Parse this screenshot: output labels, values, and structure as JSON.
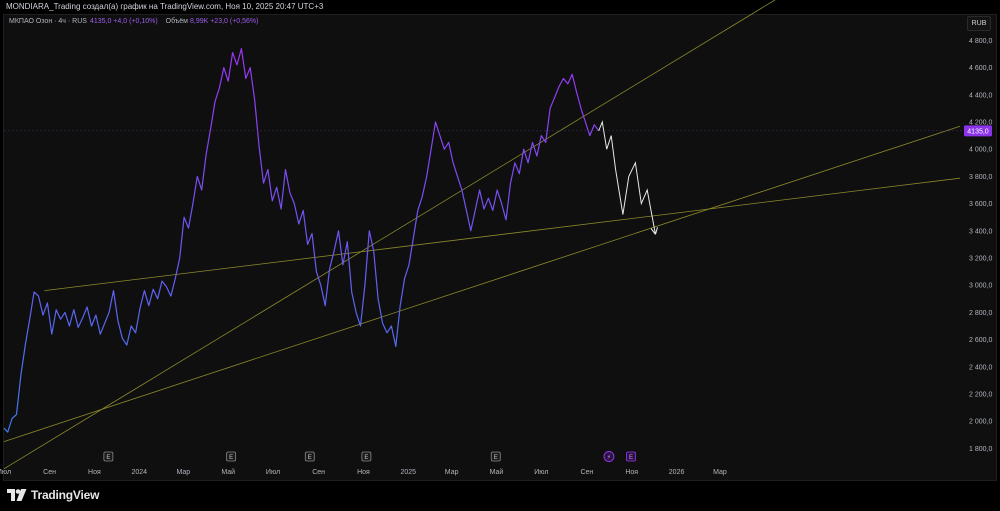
{
  "header": {
    "text": "MONDIARA_Trading создал(а) график на TradingView.com, Ноя 10, 2025 20:47 UTC+3"
  },
  "legend": {
    "symbol": "МКПАО Озон · 4ч · RUS",
    "values": "4135,0 +4,0 (+0,10%)",
    "volume_label": "Объём",
    "volume_values": "8,99K +23,0 (+0,56%)"
  },
  "currency_button": "RUB",
  "colors": {
    "line_start": "#3d7bf0",
    "line_end": "#9c34f5",
    "trendline": "#8d8a2c",
    "forecast": "#e8e8e8",
    "price_label_bg": "#8b33e8",
    "axis_text": "#b2b5be"
  },
  "footer": {
    "brand": "TradingView",
    "logo_icon": "tradingview-logo-icon"
  },
  "chart_data": {
    "type": "line",
    "title": "МКПАО Озон · 4ч · RUS",
    "currency": "RUB",
    "y_ticks": [
      1800,
      2000,
      2200,
      2400,
      2600,
      2800,
      3000,
      3200,
      3400,
      3600,
      3800,
      4000,
      4200,
      4400,
      4600,
      4800
    ],
    "y_tick_labels": [
      "1 800,0",
      "2 000,0",
      "2 200,0",
      "2 400,0",
      "2 600,0",
      "2 800,0",
      "3 000,0",
      "3 200,0",
      "3 400,0",
      "3 600,0",
      "3 800,0",
      "4 000,0",
      "4 200,0",
      "4 400,0",
      "4 600,0",
      "4 800,0"
    ],
    "ylim": [
      1700,
      4950
    ],
    "x_range": [
      "2023-07-01",
      "2026-03-31"
    ],
    "x_ticks": [
      {
        "date": "2023-07-01",
        "label": "Июл"
      },
      {
        "date": "2023-09-01",
        "label": "Сен"
      },
      {
        "date": "2023-11-01",
        "label": "Ноя"
      },
      {
        "date": "2024-01-01",
        "label": "2024"
      },
      {
        "date": "2024-03-01",
        "label": "Мар"
      },
      {
        "date": "2024-05-01",
        "label": "Май"
      },
      {
        "date": "2024-07-01",
        "label": "Июл"
      },
      {
        "date": "2024-09-01",
        "label": "Сен"
      },
      {
        "date": "2024-11-01",
        "label": "Ноя"
      },
      {
        "date": "2025-01-01",
        "label": "2025"
      },
      {
        "date": "2025-03-01",
        "label": "Мар"
      },
      {
        "date": "2025-05-01",
        "label": "Май"
      },
      {
        "date": "2025-07-01",
        "label": "Июл"
      },
      {
        "date": "2025-09-01",
        "label": "Сен"
      },
      {
        "date": "2025-11-01",
        "label": "Ноя"
      },
      {
        "date": "2026-01-01",
        "label": "2026"
      },
      {
        "date": "2026-03-01",
        "label": "Мар"
      }
    ],
    "last_price": 4135.0,
    "last_price_label": "4135,0",
    "series": [
      {
        "values": [
          [
            "2023-07-01",
            1950
          ],
          [
            "2023-07-06",
            1920
          ],
          [
            "2023-07-12",
            2020
          ],
          [
            "2023-07-18",
            2050
          ],
          [
            "2023-07-24",
            2340
          ],
          [
            "2023-07-30",
            2560
          ],
          [
            "2023-08-05",
            2750
          ],
          [
            "2023-08-11",
            2950
          ],
          [
            "2023-08-17",
            2920
          ],
          [
            "2023-08-23",
            2780
          ],
          [
            "2023-08-29",
            2870
          ],
          [
            "2023-09-04",
            2640
          ],
          [
            "2023-09-10",
            2820
          ],
          [
            "2023-09-16",
            2750
          ],
          [
            "2023-09-22",
            2800
          ],
          [
            "2023-09-28",
            2700
          ],
          [
            "2023-10-04",
            2820
          ],
          [
            "2023-10-10",
            2690
          ],
          [
            "2023-10-16",
            2760
          ],
          [
            "2023-10-22",
            2840
          ],
          [
            "2023-10-28",
            2700
          ],
          [
            "2023-11-03",
            2780
          ],
          [
            "2023-11-09",
            2640
          ],
          [
            "2023-11-15",
            2720
          ],
          [
            "2023-11-21",
            2800
          ],
          [
            "2023-11-27",
            2960
          ],
          [
            "2023-12-03",
            2740
          ],
          [
            "2023-12-09",
            2610
          ],
          [
            "2023-12-15",
            2560
          ],
          [
            "2023-12-21",
            2700
          ],
          [
            "2023-12-27",
            2650
          ],
          [
            "2024-01-02",
            2830
          ],
          [
            "2024-01-08",
            2960
          ],
          [
            "2024-01-14",
            2850
          ],
          [
            "2024-01-20",
            2970
          ],
          [
            "2024-01-26",
            2900
          ],
          [
            "2024-02-01",
            3030
          ],
          [
            "2024-02-07",
            2990
          ],
          [
            "2024-02-13",
            2920
          ],
          [
            "2024-02-19",
            3050
          ],
          [
            "2024-02-25",
            3200
          ],
          [
            "2024-03-02",
            3500
          ],
          [
            "2024-03-08",
            3420
          ],
          [
            "2024-03-14",
            3600
          ],
          [
            "2024-03-20",
            3800
          ],
          [
            "2024-03-26",
            3700
          ],
          [
            "2024-04-01",
            3960
          ],
          [
            "2024-04-07",
            4150
          ],
          [
            "2024-04-13",
            4350
          ],
          [
            "2024-04-19",
            4450
          ],
          [
            "2024-04-25",
            4600
          ],
          [
            "2024-05-01",
            4500
          ],
          [
            "2024-05-07",
            4710
          ],
          [
            "2024-05-13",
            4620
          ],
          [
            "2024-05-19",
            4740
          ],
          [
            "2024-05-25",
            4520
          ],
          [
            "2024-05-31",
            4600
          ],
          [
            "2024-06-06",
            4360
          ],
          [
            "2024-06-12",
            4020
          ],
          [
            "2024-06-18",
            3750
          ],
          [
            "2024-06-24",
            3850
          ],
          [
            "2024-06-30",
            3620
          ],
          [
            "2024-07-06",
            3720
          ],
          [
            "2024-07-12",
            3560
          ],
          [
            "2024-07-18",
            3850
          ],
          [
            "2024-07-24",
            3680
          ],
          [
            "2024-07-30",
            3600
          ],
          [
            "2024-08-05",
            3450
          ],
          [
            "2024-08-11",
            3550
          ],
          [
            "2024-08-17",
            3300
          ],
          [
            "2024-08-23",
            3380
          ],
          [
            "2024-08-29",
            3100
          ],
          [
            "2024-09-04",
            3000
          ],
          [
            "2024-09-10",
            2850
          ],
          [
            "2024-09-16",
            3120
          ],
          [
            "2024-09-22",
            3250
          ],
          [
            "2024-09-28",
            3400
          ],
          [
            "2024-10-04",
            3150
          ],
          [
            "2024-10-10",
            3320
          ],
          [
            "2024-10-16",
            2950
          ],
          [
            "2024-10-22",
            2800
          ],
          [
            "2024-10-28",
            2700
          ],
          [
            "2024-11-03",
            3000
          ],
          [
            "2024-11-09",
            3400
          ],
          [
            "2024-11-15",
            3250
          ],
          [
            "2024-11-21",
            2900
          ],
          [
            "2024-11-27",
            2720
          ],
          [
            "2024-12-03",
            2650
          ],
          [
            "2024-12-09",
            2700
          ],
          [
            "2024-12-15",
            2550
          ],
          [
            "2024-12-21",
            2850
          ],
          [
            "2024-12-27",
            3050
          ],
          [
            "2025-01-02",
            3150
          ],
          [
            "2025-01-08",
            3350
          ],
          [
            "2025-01-14",
            3550
          ],
          [
            "2025-01-20",
            3650
          ],
          [
            "2025-01-26",
            3800
          ],
          [
            "2025-02-01",
            4000
          ],
          [
            "2025-02-07",
            4200
          ],
          [
            "2025-02-13",
            4100
          ],
          [
            "2025-02-19",
            4000
          ],
          [
            "2025-02-25",
            4050
          ],
          [
            "2025-03-03",
            3900
          ],
          [
            "2025-03-09",
            3800
          ],
          [
            "2025-03-15",
            3700
          ],
          [
            "2025-03-21",
            3550
          ],
          [
            "2025-03-27",
            3400
          ],
          [
            "2025-04-02",
            3550
          ],
          [
            "2025-04-08",
            3700
          ],
          [
            "2025-04-14",
            3560
          ],
          [
            "2025-04-20",
            3640
          ],
          [
            "2025-04-26",
            3550
          ],
          [
            "2025-05-02",
            3700
          ],
          [
            "2025-05-08",
            3600
          ],
          [
            "2025-05-14",
            3480
          ],
          [
            "2025-05-20",
            3750
          ],
          [
            "2025-05-26",
            3900
          ],
          [
            "2025-06-01",
            3820
          ],
          [
            "2025-06-07",
            4000
          ],
          [
            "2025-06-13",
            3900
          ],
          [
            "2025-06-19",
            4050
          ],
          [
            "2025-06-25",
            3950
          ],
          [
            "2025-07-01",
            4100
          ],
          [
            "2025-07-07",
            4050
          ],
          [
            "2025-07-13",
            4300
          ],
          [
            "2025-07-19",
            4380
          ],
          [
            "2025-07-25",
            4460
          ],
          [
            "2025-07-31",
            4520
          ],
          [
            "2025-08-06",
            4480
          ],
          [
            "2025-08-12",
            4550
          ],
          [
            "2025-08-18",
            4420
          ],
          [
            "2025-08-24",
            4300
          ],
          [
            "2025-08-30",
            4200
          ],
          [
            "2025-09-05",
            4100
          ],
          [
            "2025-09-11",
            4180
          ],
          [
            "2025-09-17",
            4135
          ]
        ]
      },
      {
        "values": [
          [
            "2025-09-17",
            4135
          ],
          [
            "2025-09-22",
            4200
          ],
          [
            "2025-09-28",
            4000
          ],
          [
            "2025-10-04",
            4100
          ],
          [
            "2025-10-10",
            3850
          ],
          [
            "2025-10-20",
            3520
          ],
          [
            "2025-10-28",
            3800
          ],
          [
            "2025-11-06",
            3900
          ],
          [
            "2025-11-14",
            3600
          ],
          [
            "2025-11-22",
            3700
          ],
          [
            "2025-12-03",
            3380
          ]
        ]
      }
    ],
    "trendlines": [
      {
        "from": [
          "2023-07-01",
          1650
        ],
        "to": [
          "2026-03-31",
          4950
        ]
      },
      {
        "from": [
          "2023-07-01",
          1850
        ],
        "to": [
          "2026-03-31",
          3640
        ]
      },
      {
        "from": [
          "2023-08-25",
          2960
        ],
        "to": [
          "2026-03-31",
          3590
        ]
      }
    ],
    "event_markers": [
      {
        "date": "2023-11-20",
        "label": "E"
      },
      {
        "date": "2024-05-05",
        "label": "E"
      },
      {
        "date": "2024-08-20",
        "label": "E"
      },
      {
        "date": "2024-11-05",
        "label": "E"
      },
      {
        "date": "2025-04-30",
        "label": "E"
      },
      {
        "date": "2025-10-01",
        "label": "⚡"
      },
      {
        "date": "2025-10-31",
        "label": "E"
      }
    ]
  }
}
